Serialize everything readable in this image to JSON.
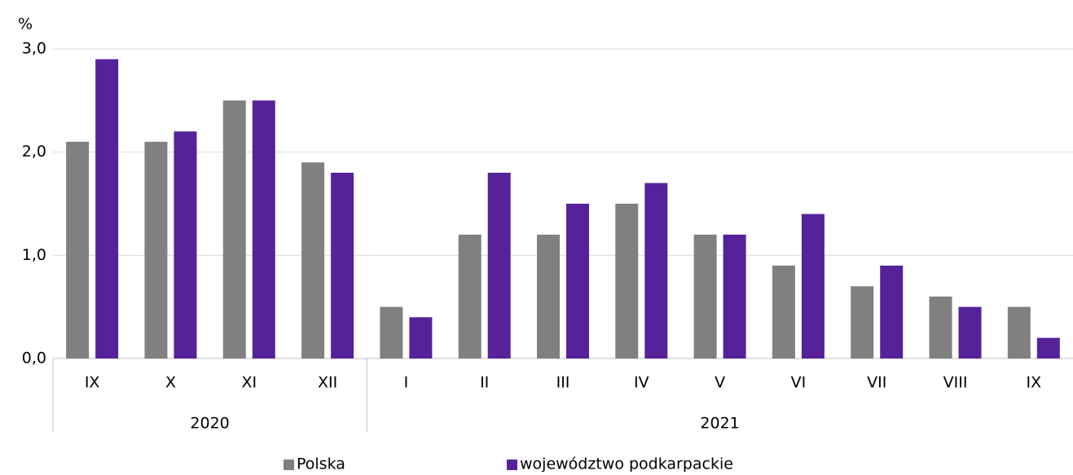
{
  "chart_data": {
    "type": "bar",
    "y_unit": "%",
    "category_groups": [
      {
        "label": "2020",
        "categories": [
          "IX",
          "X",
          "XI",
          "XII"
        ]
      },
      {
        "label": "2021",
        "categories": [
          "I",
          "II",
          "III",
          "IV",
          "V",
          "VI",
          "VII",
          "VIII",
          "IX"
        ]
      }
    ],
    "series": [
      {
        "name": "Polska",
        "color": "#808080",
        "values": [
          2.1,
          2.1,
          2.5,
          1.9,
          0.5,
          1.2,
          1.2,
          1.5,
          1.2,
          0.9,
          0.7,
          0.6,
          0.5
        ]
      },
      {
        "name": "województwo podkarpackie",
        "color": "#55229a",
        "values": [
          2.9,
          2.2,
          2.5,
          1.8,
          0.4,
          1.8,
          1.5,
          1.7,
          1.2,
          1.4,
          0.9,
          0.5,
          0.2
        ]
      }
    ],
    "ylim": [
      0,
      3
    ],
    "yticks": [
      {
        "value": 0,
        "label": "0,0"
      },
      {
        "value": 1,
        "label": "1,0"
      },
      {
        "value": 2,
        "label": "2,0"
      },
      {
        "value": 3,
        "label": "3,0"
      }
    ],
    "grid": true
  }
}
